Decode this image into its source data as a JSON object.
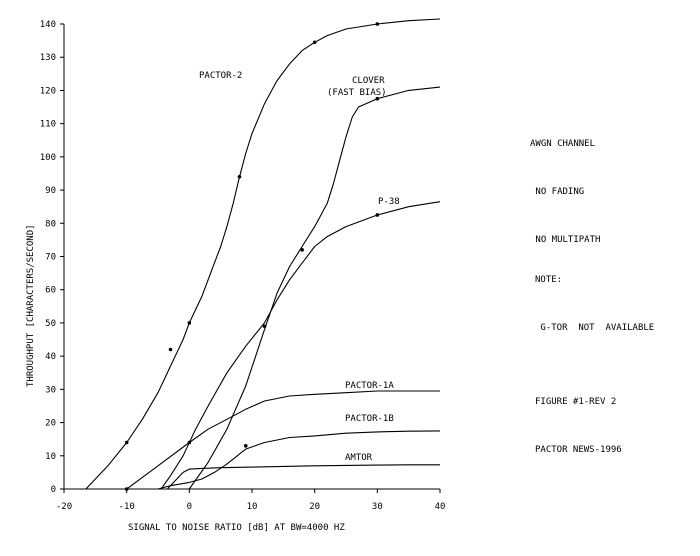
{
  "chart_data": {
    "type": "line",
    "xlabel": "SIGNAL TO NOISE RATIO [dB] AT BW=4000 HZ",
    "ylabel": "THROUGHPUT [CHARACTERS/SECOND]",
    "xlim": [
      -20,
      40
    ],
    "ylim": [
      0,
      140
    ],
    "xticks": [
      -20,
      -10,
      0,
      10,
      20,
      30,
      40
    ],
    "yticks": [
      0,
      10,
      20,
      30,
      40,
      50,
      60,
      70,
      80,
      90,
      100,
      110,
      120,
      130,
      140
    ],
    "grid": false,
    "legend": "none",
    "series": [
      {
        "name": "PACTOR-2",
        "x": [
          -16.5,
          -13,
          -10,
          -7.5,
          -5,
          -3,
          -2,
          -1,
          0,
          1,
          2,
          3,
          4,
          5,
          6,
          7,
          8,
          9,
          10,
          12,
          14,
          16,
          18,
          20,
          22,
          25,
          30,
          35,
          40
        ],
        "y": [
          0,
          7,
          14,
          21,
          29,
          37,
          41,
          45,
          50,
          54,
          58,
          63,
          68,
          73,
          79,
          86,
          94,
          101,
          107,
          116,
          123,
          128,
          132,
          134.5,
          136.5,
          138.5,
          140,
          141,
          141.5
        ]
      },
      {
        "name": "CLOVER\n(FAST BIAS)",
        "x": [
          0,
          3,
          6,
          9,
          12,
          14,
          16,
          18,
          20,
          22,
          23,
          24,
          25,
          26,
          27,
          30,
          35,
          40
        ],
        "y": [
          0,
          8,
          18,
          31,
          48,
          59,
          67,
          73,
          79,
          86,
          92,
          99,
          106,
          112,
          115,
          117.5,
          120,
          121
        ]
      },
      {
        "name": "P-38",
        "x": [
          -4.5,
          -3,
          -1,
          1,
          3,
          6,
          9,
          12,
          14,
          16,
          18,
          20,
          22,
          25,
          30,
          35,
          40
        ],
        "y": [
          0,
          4,
          10,
          18,
          25,
          35,
          43,
          50,
          57,
          63,
          68,
          73,
          76,
          79,
          82.5,
          85,
          86.5
        ]
      },
      {
        "name": "PACTOR-1A",
        "x": [
          -10,
          -5,
          0,
          3,
          6,
          9,
          12,
          16,
          20,
          25,
          30,
          35,
          40
        ],
        "y": [
          0,
          7,
          14,
          18,
          21,
          24,
          26.5,
          28,
          28.5,
          29,
          29.5,
          29.5,
          29.5
        ]
      },
      {
        "name": "PACTOR-1B",
        "x": [
          -5,
          -3,
          0,
          2,
          4,
          6,
          9,
          12,
          16,
          20,
          25,
          30,
          35,
          40
        ],
        "y": [
          0,
          1,
          2,
          3,
          5,
          7.5,
          12,
          14,
          15.5,
          16,
          16.8,
          17.2,
          17.4,
          17.5
        ]
      },
      {
        "name": "AMTOR",
        "x": [
          -3.5,
          -2,
          -1,
          0,
          2,
          5,
          10,
          15,
          20,
          25,
          30,
          35,
          40
        ],
        "y": [
          0,
          3,
          5,
          6,
          6.2,
          6.4,
          6.6,
          6.8,
          7,
          7.1,
          7.2,
          7.3,
          7.3
        ]
      }
    ],
    "markers": [
      {
        "series": "PACTOR-2",
        "points": [
          [
            -10,
            14
          ],
          [
            -3,
            42
          ],
          [
            0,
            50
          ],
          [
            8,
            94
          ],
          [
            20,
            134.5
          ],
          [
            30,
            140
          ]
        ]
      },
      {
        "series": "CLOVER\n(FAST BIAS)",
        "points": [
          [
            12,
            49
          ],
          [
            18,
            72
          ],
          [
            30,
            117.5
          ]
        ]
      },
      {
        "series": "P-38",
        "points": [
          [
            30,
            82.5
          ]
        ]
      },
      {
        "series": "PACTOR-1A",
        "points": [
          [
            -10,
            0
          ],
          [
            0,
            14
          ]
        ]
      },
      {
        "series": "PACTOR-1B",
        "points": [
          [
            9,
            13
          ]
        ]
      }
    ],
    "annotations": [
      {
        "lines": [
          "AWGN CHANNEL",
          " NO FADING",
          " NO MULTIPATH"
        ]
      },
      {
        "lines": [
          "NOTE:",
          " G-TOR  NOT  AVAILABLE"
        ]
      },
      {
        "lines": [
          "FIGURE #1-REV 2",
          "PACTOR NEWS-1996"
        ]
      }
    ]
  }
}
